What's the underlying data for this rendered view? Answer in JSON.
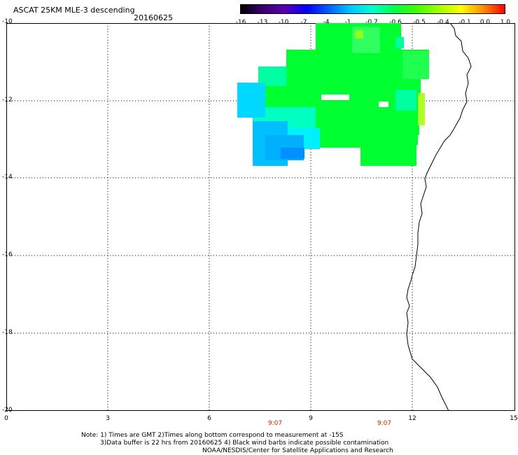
{
  "header": {
    "title": "ASCAT 25KM MLE-3 descending",
    "date": "20160625"
  },
  "colorbar": {
    "labels": [
      "-16",
      "-13",
      "-10",
      "-7",
      "-4",
      "-1",
      "-0.7",
      "-0.6",
      "-0.5",
      "-0.4",
      "-0.1",
      "0.0",
      "1.0"
    ],
    "colors": [
      "#000000",
      "#3a0070",
      "#5a00b0",
      "#0000ff",
      "#0060ff",
      "#00c8ff",
      "#00ffd0",
      "#00ff40",
      "#40ff00",
      "#a0ff00",
      "#ffff00",
      "#ff9000",
      "#ff0000"
    ]
  },
  "map": {
    "y_ticks": [
      "-10",
      "-12",
      "-14",
      "-16",
      "-18",
      "-20"
    ],
    "x_ticks": [
      "0",
      "3",
      "6",
      "9",
      "12",
      "15"
    ],
    "time_labels": [
      "9:07",
      "9:07"
    ]
  },
  "notes": {
    "line1": "Note: 1) Times are GMT 2)Times along bottom correspond to measurement at -15S",
    "line2": "3)Data buffer is 22 hrs from 20160625 4) Black wind barbs indicate possible contamination",
    "line3": "NOAA/NESDIS/Center for Satellite Applications and Research"
  }
}
